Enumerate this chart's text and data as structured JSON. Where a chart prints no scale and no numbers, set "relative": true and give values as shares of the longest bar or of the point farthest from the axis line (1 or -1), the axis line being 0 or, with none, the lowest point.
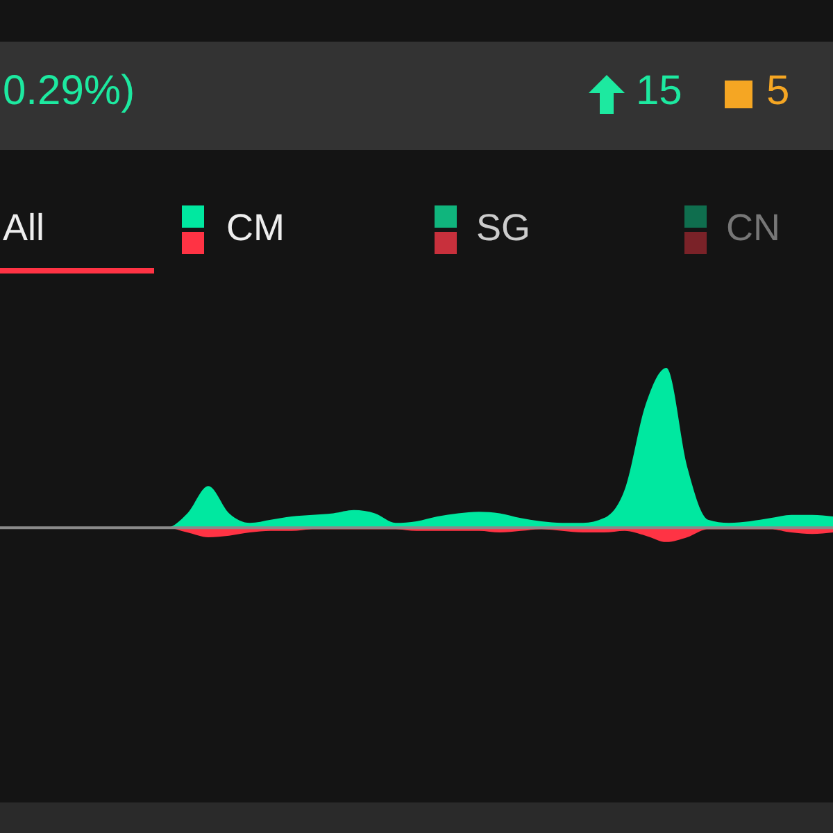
{
  "chart_data": {
    "type": "area",
    "relative": true,
    "categories": [
      null,
      null,
      null,
      null,
      null,
      null,
      null,
      null,
      null,
      null,
      null,
      null,
      null,
      null,
      null,
      null,
      null,
      null,
      null,
      null,
      null,
      null,
      null,
      null,
      null,
      null,
      null,
      null,
      null,
      null,
      null,
      null,
      null,
      null,
      null,
      null,
      null,
      null,
      null,
      null,
      null
    ],
    "series": [
      {
        "color": "#00e8a0",
        "values": [
          0,
          0,
          0,
          0,
          0,
          0,
          0,
          0,
          0,
          0.09,
          0.26,
          0.09,
          0.03,
          0.05,
          0.07,
          0.08,
          0.09,
          0.11,
          0.09,
          0.03,
          0.04,
          0.07,
          0.09,
          0.1,
          0.09,
          0.06,
          0.04,
          0.03,
          0.03,
          0.06,
          0.24,
          0.77,
          1,
          0.38,
          0.05,
          0.03,
          0.04,
          0.06,
          0.08,
          0.08,
          0.07
        ]
      },
      {
        "color": "#ff3344",
        "values": [
          0,
          0,
          0,
          0,
          0,
          0,
          0,
          0,
          0,
          -0.03,
          -0.06,
          -0.05,
          -0.03,
          -0.02,
          -0.02,
          -0.01,
          -0.01,
          -0.01,
          -0.01,
          -0.01,
          -0.02,
          -0.02,
          -0.02,
          -0.02,
          -0.03,
          -0.02,
          -0.01,
          -0.02,
          -0.03,
          -0.03,
          -0.02,
          -0.05,
          -0.09,
          -0.06,
          -0.01,
          -0.01,
          -0.01,
          -0.01,
          -0.03,
          -0.04,
          -0.03
        ]
      }
    ],
    "annotations": [
      "0.29%)",
      "15",
      "5",
      "All",
      "CM",
      "SG",
      "CN"
    ]
  }
}
